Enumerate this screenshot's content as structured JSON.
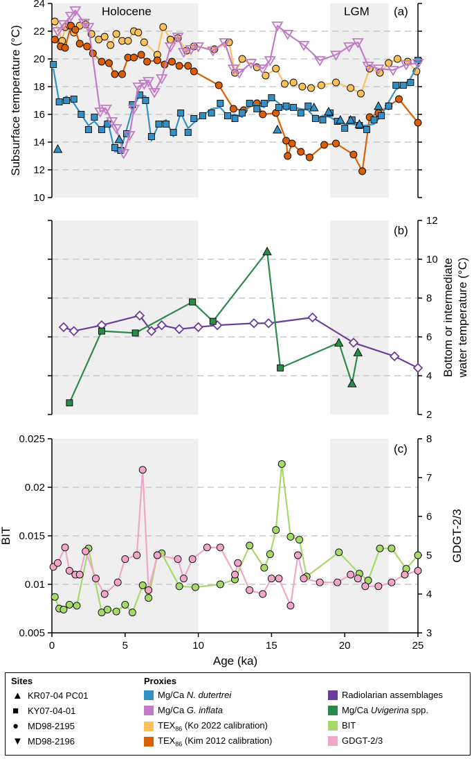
{
  "chart_data": [
    {
      "panel_label": "(a)",
      "type": "scatter-line",
      "ylabel": "Subsurface temperature (°C)",
      "ylim": [
        10,
        24
      ],
      "yticks": [
        10,
        12,
        14,
        16,
        18,
        20,
        22,
        24
      ],
      "xlim": [
        0,
        25
      ],
      "shade_labels": [
        "Holocene",
        "LGM"
      ],
      "shaded_intervals": [
        [
          0,
          10
        ],
        [
          19,
          23
        ]
      ],
      "series": [
        {
          "name": "TEX86 Ko 2022",
          "color": "#fdc15a",
          "marker": "circle",
          "x": [
            0.2,
            0.7,
            0.9,
            1.2,
            1.5,
            1.9,
            2.3,
            2.7,
            3.2,
            3.6,
            4.0,
            4.4,
            4.8,
            5.2,
            5.6,
            5.9,
            6.3,
            7.2,
            7.6,
            8.1,
            8.6,
            9.2,
            9.7,
            11.1,
            12.1,
            12.5,
            13.0,
            14.0,
            14.6,
            15.3,
            15.9,
            16.5,
            17.1,
            17.7,
            18.4,
            19.4,
            20.4,
            21.1,
            21.7,
            22.4,
            23.0,
            23.6,
            24.3,
            24.9
          ],
          "y": [
            22.7,
            21.3,
            22.3,
            22.4,
            21.9,
            22.4,
            22.5,
            21.8,
            21.4,
            21.6,
            21.0,
            21.8,
            21.3,
            21.3,
            22.0,
            21.9,
            21.2,
            20.3,
            22.3,
            21.4,
            21.5,
            20.6,
            20.9,
            20.7,
            21.2,
            19.0,
            20.0,
            19.4,
            18.8,
            19.3,
            18.2,
            18.3,
            18.0,
            17.9,
            18.1,
            18.3,
            17.9,
            17.5,
            19.3,
            19.0,
            19.7,
            20.0,
            19.8,
            19.1
          ]
        },
        {
          "name": "TEX86 Kim 2012",
          "color": "#d95f02",
          "marker": "circle",
          "x": [
            0.2,
            0.6,
            0.9,
            1.3,
            1.6,
            1.9,
            2.4,
            2.8,
            3.4,
            3.9,
            4.3,
            4.8,
            5.2,
            5.6,
            6.1,
            6.5,
            7.2,
            7.7,
            8.2,
            8.7,
            9.3,
            9.7,
            11.4,
            12.4,
            13.1,
            14.0,
            14.4,
            15.3,
            16.0,
            16.1,
            16.4,
            17.0,
            17.6,
            18.6,
            19.4,
            20.6,
            21.2,
            21.7,
            22.3,
            23.0,
            23.7,
            25.0
          ],
          "y": [
            21.4,
            20.9,
            20.8,
            22.4,
            22.1,
            21.1,
            20.9,
            20.4,
            19.8,
            19.7,
            18.9,
            18.9,
            20.1,
            20.1,
            20.3,
            19.8,
            19.9,
            19.6,
            19.8,
            19.5,
            19.5,
            19.1,
            18.1,
            16.4,
            16.3,
            16.8,
            16.0,
            16.1,
            14.1,
            13.0,
            13.9,
            13.3,
            12.9,
            13.8,
            13.9,
            13.1,
            11.9,
            15.8,
            16.1,
            16.6,
            17.1,
            15.4
          ]
        },
        {
          "name": "Mg/Ca N. dutertrei",
          "color": "#3390c4",
          "marker": "square",
          "x": [
            0.1,
            0.5,
            1.0,
            1.5,
            2.0,
            2.5,
            2.9,
            3.4,
            3.8,
            4.3,
            4.7,
            5.1,
            5.5,
            6.0,
            6.4,
            6.8,
            7.3,
            7.8,
            8.3,
            8.8,
            9.3,
            9.7,
            10.3,
            10.9,
            11.5,
            12.0,
            12.5,
            13.0,
            13.5,
            14.0,
            14.5,
            15.0,
            15.5,
            16.0,
            16.5,
            17.0,
            17.5,
            18.0,
            18.5,
            19.0,
            19.5,
            20.0,
            20.5,
            21.0,
            21.5,
            22.0,
            22.5,
            23.0,
            23.5,
            24.0,
            24.5,
            25.0
          ],
          "y": [
            19.3,
            16.9,
            17.3,
            16.8,
            16.0,
            15.2,
            15.5,
            14.9,
            15.6,
            13.3,
            13.4,
            14.9,
            16.4,
            17.4,
            17.3,
            14.1,
            15.3,
            15.6,
            14.4,
            16.1,
            15.0,
            15.4,
            15.9,
            16.4,
            16.5,
            15.9,
            16.0,
            15.8,
            16.8,
            16.7,
            16.5,
            17.2,
            16.8,
            16.3,
            16.5,
            16.4,
            16.3,
            15.7,
            15.9,
            15.8,
            15.5,
            15.3,
            15.3,
            15.2,
            15.2,
            15.3,
            15.9,
            16.9,
            17.8,
            18.1,
            18.6,
            19.6
          ]
        },
        {
          "name": "Mg/Ca G. inflata",
          "color": "#c27bc6",
          "marker": "triangle-down",
          "x": [
            0.4,
            0.8,
            1.3,
            1.6,
            2.2,
            2.5,
            3.3,
            3.7,
            4.1,
            4.4,
            4.9,
            5.3,
            5.6,
            5.9,
            6.3,
            6.6,
            7.0,
            7.5,
            8.1,
            8.6,
            9.0,
            9.5,
            10.0,
            11.0,
            11.8,
            12.4,
            12.8,
            13.6,
            14.4,
            14.9,
            15.4,
            16.1,
            17.2,
            18.3,
            19.4,
            20.3,
            20.9,
            21.6,
            22.3,
            23.3,
            24.2,
            25.0
          ],
          "y": [
            22.0,
            22.5,
            23.1,
            23.5,
            22.6,
            22.3,
            16.2,
            16.4,
            15.5,
            15.0,
            13.2,
            14.5,
            16.4,
            18.0,
            18.2,
            18.4,
            17.6,
            18.6,
            20.9,
            21.6,
            20.5,
            20.7,
            20.9,
            20.6,
            21.2,
            19.3,
            19.0,
            19.7,
            19.3,
            19.9,
            22.4,
            21.8,
            21.0,
            19.9,
            20.3,
            20.9,
            21.2,
            19.5,
            19.3,
            19.2,
            19.6,
            19.7
          ]
        },
        {
          "name": "KR07-04 PC01 N. dutertrei",
          "color": "#3390c4",
          "marker": "triangle-up",
          "x": [
            0.4,
            4.6,
            15.4,
            17.9,
            18.9,
            19.7,
            20.4,
            21.0,
            22.3
          ],
          "y": [
            13.5,
            14.2,
            14.9,
            16.5,
            16.2,
            15.6,
            15.6,
            15.3,
            16.6
          ]
        }
      ]
    },
    {
      "panel_label": "(b)",
      "type": "line",
      "ylabel": "Bottom or intermediate water temperature (°C)",
      "ylim": [
        2,
        12
      ],
      "yticks": [
        2,
        4,
        6,
        8,
        10,
        12
      ],
      "xlim": [
        0,
        25
      ],
      "series": [
        {
          "name": "Radiolarian assemblages",
          "color": "#6a3d9a",
          "marker": "diamond",
          "x": [
            0.8,
            1.5,
            3.4,
            6.0,
            6.8,
            7.5,
            8.7,
            10.0,
            11.3,
            13.8,
            14.8,
            17.8,
            20.6,
            23.4,
            25.0
          ],
          "y": [
            6.5,
            6.3,
            6.6,
            7.1,
            6.3,
            6.6,
            6.4,
            6.5,
            6.6,
            6.7,
            6.7,
            7.0,
            5.7,
            5.0,
            4.4
          ]
        },
        {
          "name": "Mg/Ca Uvigerina spp.",
          "color": "#2b8a4a",
          "marker": "mixed",
          "x": [
            1.2,
            3.4,
            5.7,
            9.6,
            11.0,
            14.7,
            15.6,
            19.6,
            20.5,
            20.9
          ],
          "y": [
            2.6,
            6.3,
            6.2,
            7.8,
            6.8,
            10.4,
            4.4,
            5.7,
            3.6,
            5.2
          ]
        }
      ]
    },
    {
      "panel_label": "(c)",
      "type": "line",
      "ylabel": "BIT",
      "y2label": "GDGT-2/3",
      "ylim": [
        0.005,
        0.025
      ],
      "yticks": [
        0.005,
        0.01,
        0.015,
        0.02,
        0.025
      ],
      "ytick_labels": [
        "0.005",
        "0.01",
        "0.015",
        "0.02",
        "0.025"
      ],
      "y2lim": [
        3,
        8
      ],
      "y2ticks": [
        3,
        4,
        5,
        6,
        7,
        8
      ],
      "xlim": [
        0,
        25
      ],
      "xlabel": "Age (ka)",
      "xticks": [
        0,
        5,
        10,
        15,
        20,
        25
      ],
      "series": [
        {
          "name": "BIT",
          "color": "#a6d96a",
          "axis": "left",
          "x": [
            0.2,
            0.5,
            0.8,
            1.2,
            1.7,
            2.5,
            3.4,
            3.8,
            4.4,
            5.0,
            5.5,
            6.2,
            6.6,
            7.2,
            7.5,
            8.7,
            9.8,
            11.5,
            12.5,
            13.5,
            14.5,
            14.9,
            15.3,
            15.7,
            16.3,
            16.9,
            17.4,
            19.6,
            21.0,
            21.6,
            22.4,
            23.2,
            24.2,
            25.0
          ],
          "y": [
            0.0087,
            0.0075,
            0.0074,
            0.0079,
            0.0078,
            0.0137,
            0.0071,
            0.0074,
            0.0072,
            0.0079,
            0.0071,
            0.0099,
            0.0086,
            0.013,
            0.0132,
            0.0098,
            0.0097,
            0.01,
            0.0105,
            0.014,
            0.0117,
            0.0131,
            0.0156,
            0.0224,
            0.0149,
            0.0146,
            0.0108,
            0.0133,
            0.0111,
            0.0104,
            0.0137,
            0.0137,
            0.0116,
            0.013
          ]
        },
        {
          "name": "GDGT-2/3",
          "color": "#f1a6c8",
          "axis": "right",
          "x": [
            0.1,
            0.4,
            0.9,
            1.2,
            1.6,
            1.9,
            2.3,
            3.0,
            3.6,
            4.5,
            5.0,
            5.8,
            6.2,
            6.6,
            7.2,
            8.6,
            9.0,
            9.6,
            10.6,
            11.5,
            12.5,
            12.7,
            13.5,
            14.4,
            15.0,
            15.5,
            16.3,
            16.8,
            17.2,
            18.3,
            19.5,
            20.4,
            20.9,
            21.4,
            22.3,
            23.2,
            24.1,
            25.0
          ],
          "y": [
            4.7,
            4.8,
            5.2,
            4.6,
            4.5,
            4.5,
            5.1,
            4.4,
            4.0,
            4.3,
            4.9,
            5.0,
            7.2,
            4.1,
            5.0,
            4.9,
            4.4,
            4.9,
            5.2,
            5.2,
            4.5,
            4.8,
            4.1,
            4.0,
            4.4,
            4.4,
            3.7,
            5.0,
            4.4,
            4.3,
            4.3,
            4.5,
            4.4,
            4.2,
            4.2,
            4.3,
            4.5,
            4.6
          ]
        }
      ]
    }
  ],
  "legend": {
    "sites_title": "Sites",
    "proxies_title": "Proxies",
    "sites": [
      {
        "label": "KR07-04 PC01",
        "symbol": "▲"
      },
      {
        "label": "KY07-04-01",
        "symbol": "■"
      },
      {
        "label": "MD98-2195",
        "symbol": "●"
      },
      {
        "label": "MD98-2196",
        "symbol": "▼"
      }
    ],
    "proxies": [
      {
        "prefix": "Mg/Ca ",
        "italic": "N. dutertrei",
        "suffix": "",
        "color": "#3390c4"
      },
      {
        "prefix": "Mg/Ca ",
        "italic": "G. inflata",
        "suffix": "",
        "color": "#c27bc6"
      },
      {
        "prefix": "TEX",
        "sub": "86",
        "suffix": " (Ko 2022 calibration)",
        "color": "#fdc15a"
      },
      {
        "prefix": "TEX",
        "sub": "86",
        "suffix": " (Kim 2012 calibration)",
        "color": "#d95f02"
      },
      {
        "prefix": "Radiolarian assemblages",
        "color": "#6a3d9a"
      },
      {
        "prefix": "Mg/Ca ",
        "italic": "Uvigerina",
        "suffix": " spp.",
        "color": "#2b8a4a"
      },
      {
        "prefix": "BIT",
        "color": "#a6d96a"
      },
      {
        "prefix": "GDGT-2/3",
        "color": "#f1a6c8"
      }
    ]
  }
}
